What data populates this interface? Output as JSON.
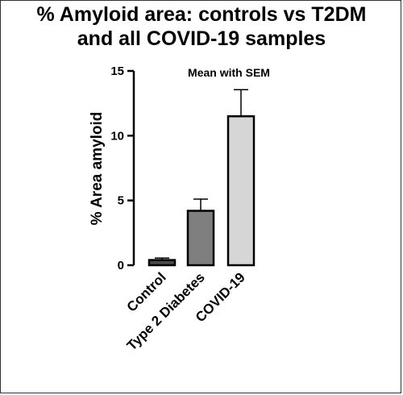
{
  "chart_data": {
    "type": "bar",
    "title_lines": [
      "% Amyloid area: controls vs T2DM",
      "and all COVID-19 samples"
    ],
    "subtitle": "Mean with SEM",
    "ylabel": "% Area amyloid",
    "xlabel": "",
    "ylim": [
      0,
      15
    ],
    "yticks": [
      0,
      5,
      10,
      15
    ],
    "categories": [
      "Control",
      "Type 2 Diabetes",
      "COVID-19"
    ],
    "series": [
      {
        "values": [
          0.4,
          4.2,
          11.5
        ],
        "sem": [
          0.15,
          0.9,
          2.05
        ],
        "colors": [
          "#4a4a4a",
          "#7f7f7f",
          "#d6d6d6"
        ]
      }
    ],
    "grid": false,
    "legend": "none"
  }
}
